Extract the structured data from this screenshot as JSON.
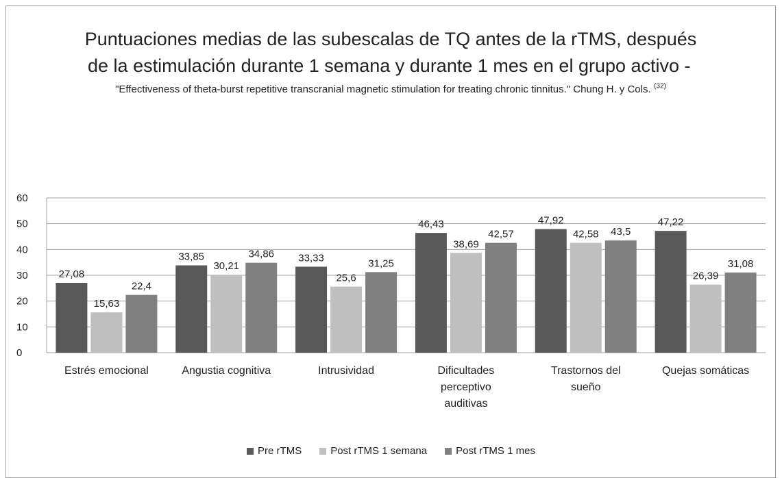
{
  "chart_data": {
    "type": "bar",
    "title": "Puntuaciones medias de las subescalas de TQ antes de la rTMS, después de la estimulación durante 1 semana y durante 1 mes en el grupo activo -",
    "subtitle": "\"Effectiveness of theta-burst repetitive transcranial magnetic stimulation for treating chronic tinnitus.\" Chung H. y Cols.",
    "subtitle_superscript": "(32)",
    "categories": [
      "Estrés emocional",
      "Angustia cognitiva",
      "Intrusividad",
      "Dificultades perceptivo auditivas",
      "Trastornos del sueño",
      "Quejas somáticas"
    ],
    "series": [
      {
        "name": "Pre rTMS",
        "color": "#595959",
        "values": [
          27.08,
          33.85,
          33.33,
          46.43,
          47.92,
          47.22
        ],
        "value_labels": [
          "27,08",
          "33,85",
          "33,33",
          "46,43",
          "47,92",
          "47,22"
        ]
      },
      {
        "name": "Post rTMS 1 semana",
        "color": "#bfbfbf",
        "values": [
          15.63,
          30.21,
          25.6,
          38.69,
          42.58,
          26.39
        ],
        "value_labels": [
          "15,63",
          "30,21",
          "25,6",
          "38,69",
          "42,58",
          "26,39"
        ]
      },
      {
        "name": "Post rTMS 1 mes",
        "color": "#808080",
        "values": [
          22.4,
          34.86,
          31.25,
          42.57,
          43.5,
          31.08
        ],
        "value_labels": [
          "22,4",
          "34,86",
          "31,25",
          "42,57",
          "43,5",
          "31,08"
        ]
      }
    ],
    "ylim": [
      0,
      60
    ],
    "yticks": [
      0,
      10,
      20,
      30,
      40,
      50,
      60
    ],
    "grid": true,
    "legend": "bottom"
  }
}
